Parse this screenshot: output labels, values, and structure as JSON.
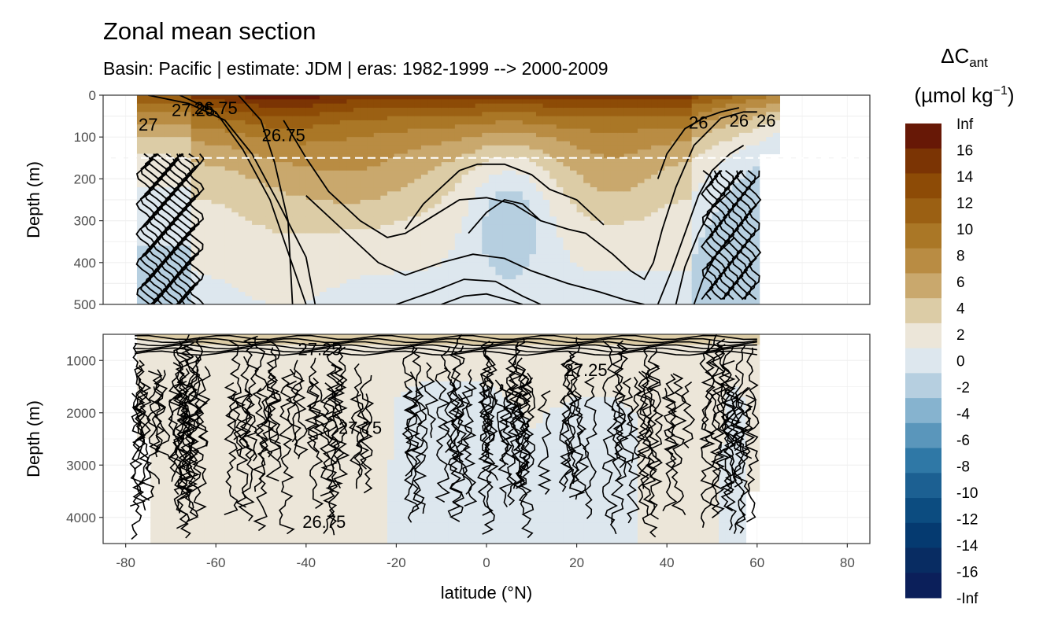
{
  "title": "Zonal mean section",
  "subtitle": "Basin: Pacific | estimate: JDM  | eras: 1982-1999 --> 2000-2009",
  "chart_data": {
    "type": "contour",
    "title": "Zonal mean section",
    "subtitle": "Basin: Pacific | estimate: JDM  | eras: 1982-1999 --> 2000-2009",
    "xlabel": "latitude (°N)",
    "ylabel": "Depth (m)",
    "xlim": [
      -85,
      85
    ],
    "x_ticks": [
      "-80",
      "-60",
      "-40",
      "-20",
      "0",
      "20",
      "40",
      "60",
      "80"
    ],
    "x_tick_values": [
      -80,
      -60,
      -40,
      -20,
      0,
      20,
      40,
      60,
      80
    ],
    "panels": [
      {
        "name": "upper",
        "ylim": [
          0,
          500
        ],
        "y_ticks": [
          "0",
          "100",
          "200",
          "300",
          "400",
          "500"
        ],
        "y_tick_values": [
          0,
          100,
          200,
          300,
          400,
          500
        ]
      },
      {
        "name": "lower",
        "ylim": [
          500,
          4500
        ],
        "y_ticks": [
          "1000",
          "2000",
          "3000",
          "4000"
        ],
        "y_tick_values": [
          1000,
          2000,
          3000,
          4000
        ]
      }
    ],
    "reference_line_depth": 150,
    "contour_labels_upper": [
      "27.25",
      "27",
      "26.75",
      "26.75",
      "26",
      "26",
      "26"
    ],
    "contour_labels_lower": [
      "27.25",
      "27.75",
      "26.75",
      "27.25"
    ],
    "colorbar": {
      "title_main": "ΔC",
      "title_sub": "ant",
      "unit_main": "(µmol kg",
      "unit_sup": "−1",
      "unit_end": ")",
      "labels": [
        "Inf",
        "16",
        "14",
        "12",
        "10",
        "8",
        "6",
        "4",
        "2",
        "0",
        "-2",
        "-4",
        "-6",
        "-8",
        "-10",
        "-12",
        "-14",
        "-16",
        "-Inf"
      ],
      "colors": [
        "#671806",
        "#7b3404",
        "#8d4b06",
        "#9b6013",
        "#aa7726",
        "#b98c43",
        "#c9a86d",
        "#dccca6",
        "#ece6d9",
        "#dde7ee",
        "#b6cfe0",
        "#86b3cf",
        "#5a96bb",
        "#2f78a6",
        "#1c6092",
        "#0c4c80",
        "#053a70",
        "#082c62",
        "#0b1f5a"
      ]
    },
    "grid": true
  }
}
